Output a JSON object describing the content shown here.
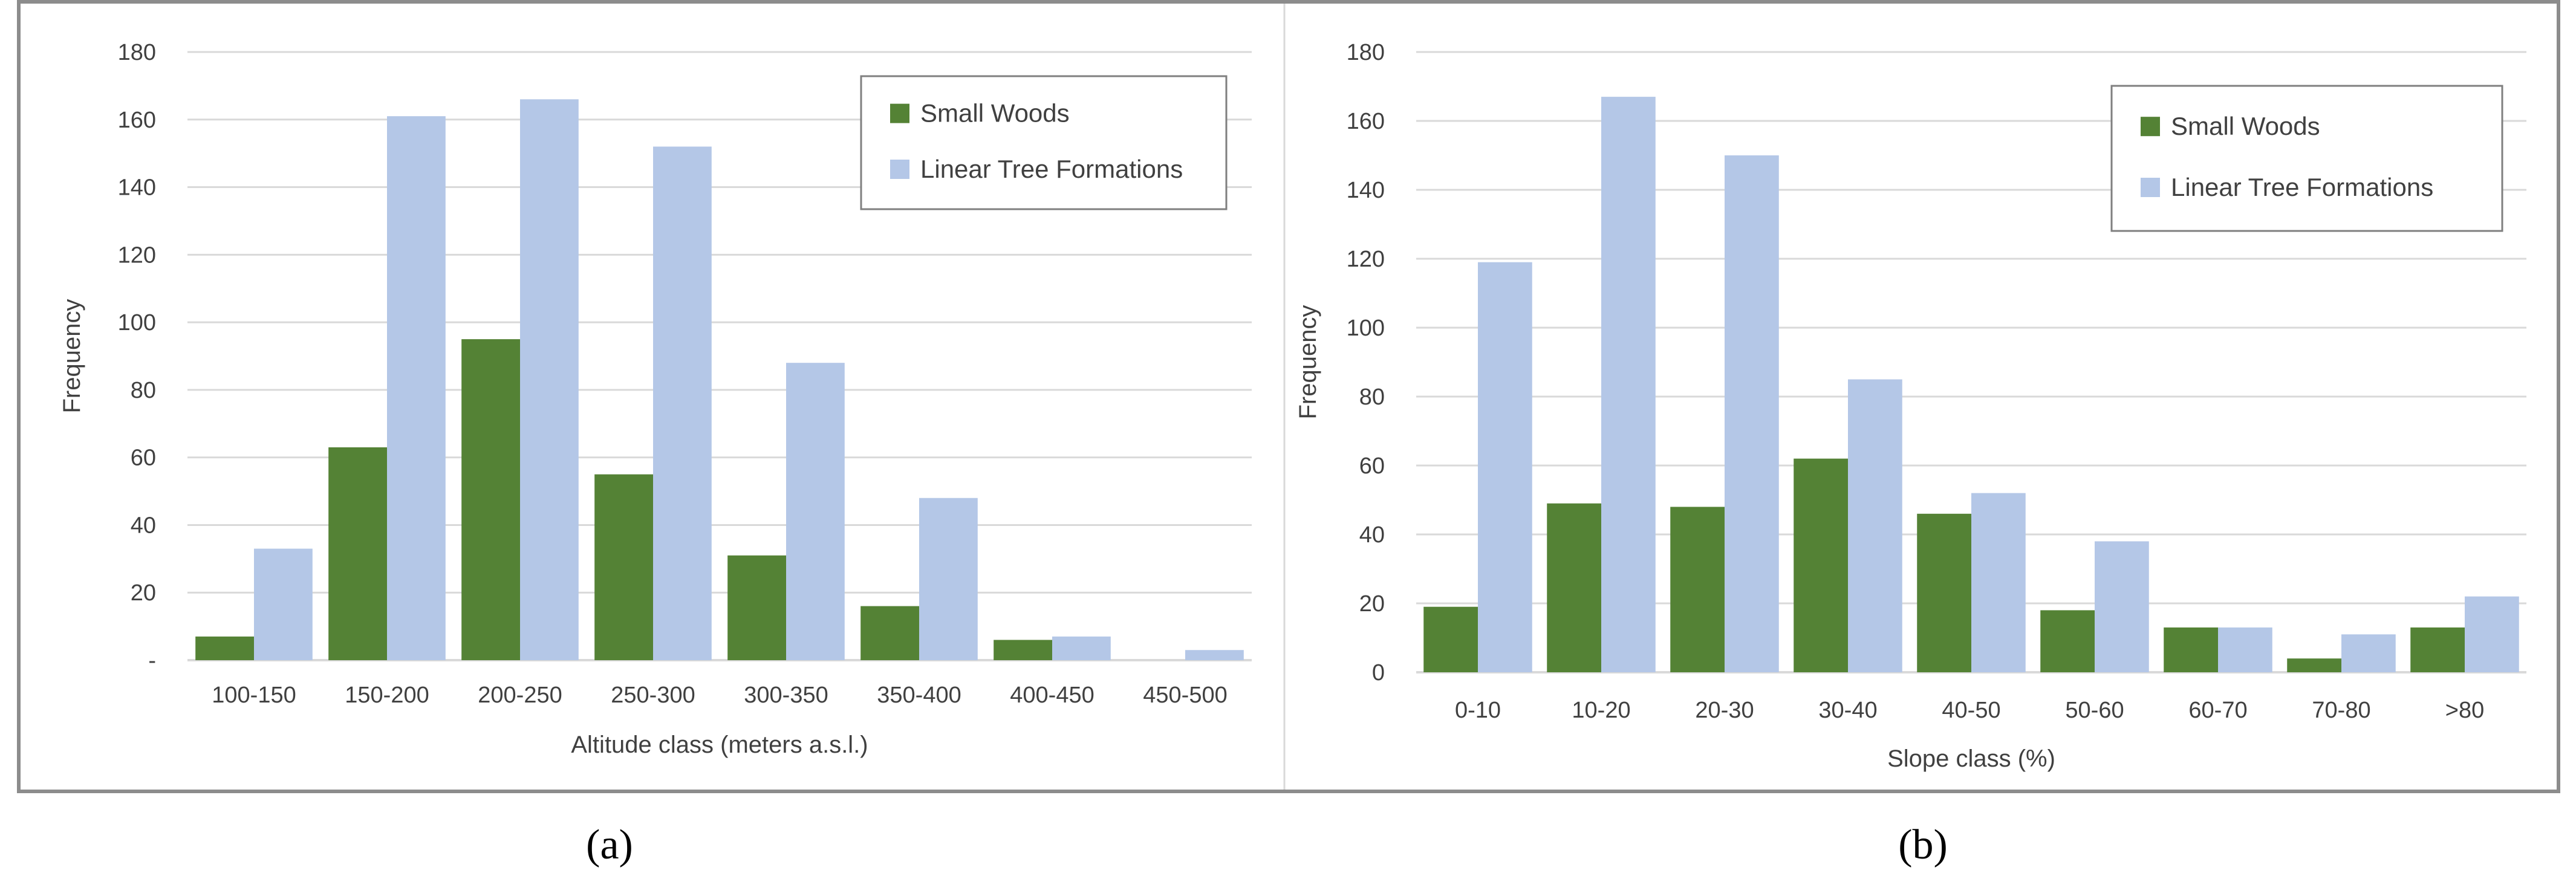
{
  "colors": {
    "small_woods": "#548235",
    "linear_tree_formations": "#b4c7e7",
    "gridline": "#d9d9d9",
    "panel_divider": "#d9d9d9"
  },
  "chart_data": [
    {
      "type": "bar",
      "caption": "(a)",
      "xlabel": "Altitude class (meters a.s.l.)",
      "ylabel": "Frequency",
      "ylim": [
        0,
        180
      ],
      "yticks": [
        0,
        20,
        40,
        60,
        80,
        100,
        120,
        140,
        160,
        180
      ],
      "yticklabels": [
        "-",
        "20",
        "40",
        "60",
        "80",
        "100",
        "120",
        "140",
        "160",
        "180"
      ],
      "grid": true,
      "legend_position": "top-right",
      "categories": [
        "100-150",
        "150-200",
        "200-250",
        "250-300",
        "300-350",
        "350-400",
        "400-450",
        "450-500"
      ],
      "series": [
        {
          "name": "Small Woods",
          "values": [
            7,
            63,
            95,
            55,
            31,
            16,
            6,
            0
          ]
        },
        {
          "name": "Linear Tree Formations",
          "values": [
            33,
            161,
            166,
            152,
            88,
            48,
            7,
            3
          ]
        }
      ]
    },
    {
      "type": "bar",
      "caption": "(b)",
      "xlabel": "Slope class (%)",
      "ylabel": "Frequency",
      "ylim": [
        0,
        180
      ],
      "yticks": [
        0,
        20,
        40,
        60,
        80,
        100,
        120,
        140,
        160,
        180
      ],
      "yticklabels": [
        "0",
        "20",
        "40",
        "60",
        "80",
        "100",
        "120",
        "140",
        "160",
        "180"
      ],
      "grid": true,
      "legend_position": "top-right",
      "categories": [
        "0-10",
        "10-20",
        "20-30",
        "30-40",
        "40-50",
        "50-60",
        "60-70",
        "70-80",
        ">80"
      ],
      "series": [
        {
          "name": "Small Woods",
          "values": [
            19,
            49,
            48,
            62,
            46,
            18,
            13,
            4,
            13
          ]
        },
        {
          "name": "Linear Tree Formations",
          "values": [
            119,
            167,
            150,
            85,
            52,
            38,
            13,
            11,
            22
          ]
        }
      ]
    }
  ]
}
